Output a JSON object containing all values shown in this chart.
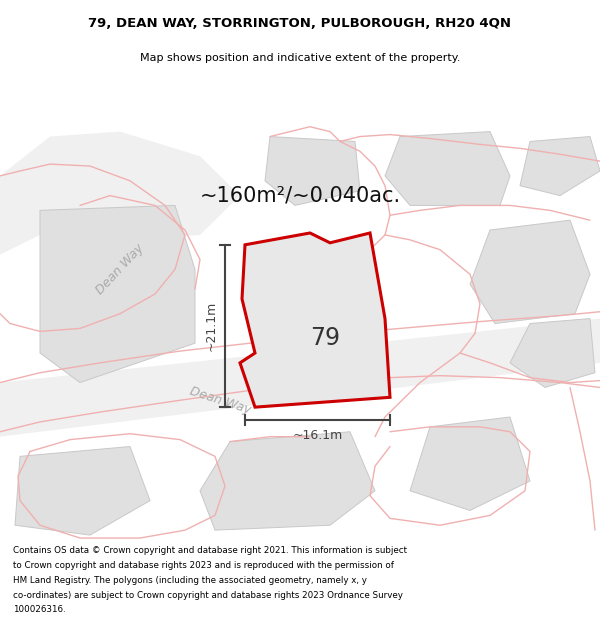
{
  "title_line1": "79, DEAN WAY, STORRINGTON, PULBOROUGH, RH20 4QN",
  "title_line2": "Map shows position and indicative extent of the property.",
  "area_text": "~160m²/~0.040ac.",
  "property_number": "79",
  "dim_width": "~16.1m",
  "dim_height": "~21.1m",
  "footer_lines": [
    "Contains OS data © Crown copyright and database right 2021. This information is subject",
    "to Crown copyright and database rights 2023 and is reproduced with the permission of",
    "HM Land Registry. The polygons (including the associated geometry, namely x, y",
    "co-ordinates) are subject to Crown copyright and database rights 2023 Ordnance Survey",
    "100026316."
  ],
  "bg_color": "#f0f0f0",
  "property_fill": "#e8e8e8",
  "property_edge": "#cc0000",
  "building_fill": "#e0e0e0",
  "building_edge": "#c8c8c8",
  "road_line_color": "#f0b0b0",
  "road_label_color": "#aaaaaa",
  "dim_color": "#444444",
  "title_color": "#000000",
  "footer_color": "#000000",
  "white": "#ffffff"
}
